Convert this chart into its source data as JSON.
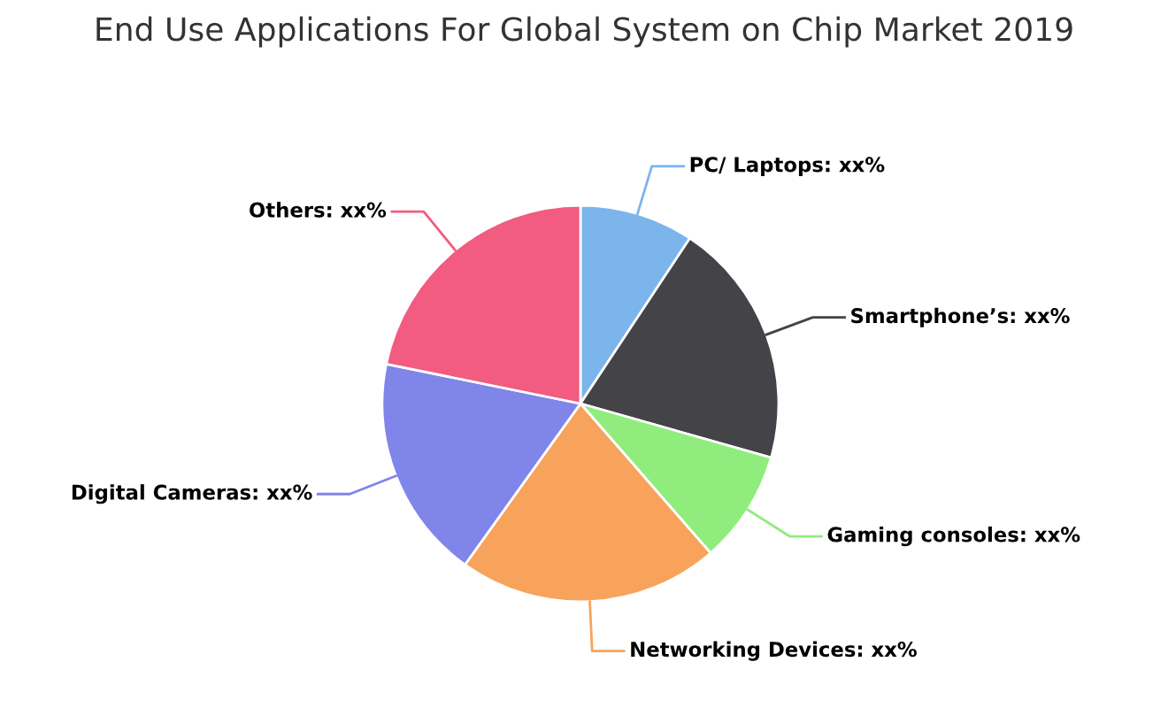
{
  "chart_data": {
    "type": "pie",
    "title": "End Use Applications For Global System on Chip Market 2019",
    "categories": [
      "PC/ Laptops",
      "Smartphone’s",
      "Gaming consoles",
      "Networking Devices",
      "Digital Cameras",
      "Others"
    ],
    "values": [
      9.3,
      20.1,
      9.2,
      21.3,
      18.3,
      21.8
    ],
    "colors": [
      "#7cb5ec",
      "#434348",
      "#90ed7d",
      "#f7a35c",
      "#8085e9",
      "#f15c80"
    ],
    "value_labels": [
      "xx%",
      "xx%",
      "xx%",
      "xx%",
      "xx%",
      "xx%"
    ]
  }
}
